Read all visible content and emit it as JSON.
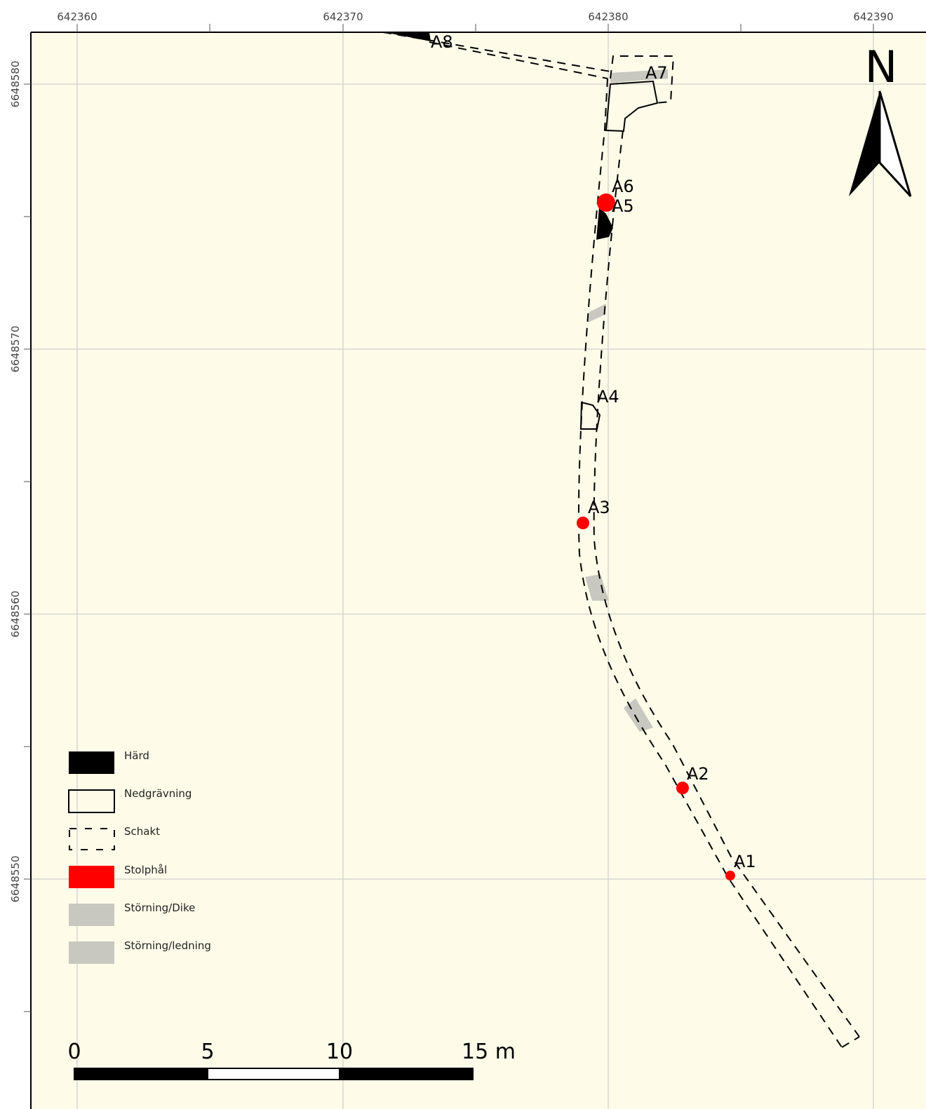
{
  "map": {
    "colors": {
      "background": "#fefce9",
      "grid": "#d6d6d0",
      "hard": "#000000",
      "stolphal": "#ff0000",
      "storning": "#c8c8c0"
    },
    "x_grid": [
      {
        "value": 642360,
        "label": "642360"
      },
      {
        "value": 642370,
        "label": "642370"
      },
      {
        "value": 642380,
        "label": "642380"
      },
      {
        "value": 642390,
        "label": "642390"
      }
    ],
    "y_grid": [
      {
        "value": 6648580,
        "label": "6648580"
      },
      {
        "value": 6648570,
        "label": "6648570"
      },
      {
        "value": 6648560,
        "label": "6648560"
      },
      {
        "value": 6648550,
        "label": "6648550"
      }
    ],
    "north_arrow": {
      "label": "N"
    },
    "features": [
      {
        "id": "A1",
        "label": "A1",
        "type": "Stolphål",
        "icon": "red-dot"
      },
      {
        "id": "A2",
        "label": "A2",
        "type": "Stolphål",
        "icon": "red-dot"
      },
      {
        "id": "A3",
        "label": "A3",
        "type": "Stolphål",
        "icon": "red-dot"
      },
      {
        "id": "A4",
        "label": "A4",
        "type": "Nedgrävning",
        "icon": "outline-polygon"
      },
      {
        "id": "A5",
        "label": "A5",
        "type": "Härd",
        "icon": "black-polygon"
      },
      {
        "id": "A6",
        "label": "A6",
        "type": "Stolphål",
        "icon": "red-dot"
      },
      {
        "id": "A7",
        "label": "A7",
        "type": "Nedgrävning",
        "icon": "outline-polygon"
      },
      {
        "id": "A8",
        "label": "A8",
        "type": "Härd",
        "icon": "black-polygon"
      }
    ],
    "legend": {
      "items": [
        {
          "label": "Härd",
          "symbol": "solid-black"
        },
        {
          "label": "Nedgrävning",
          "symbol": "outline"
        },
        {
          "label": "Schakt",
          "symbol": "dashed-outline"
        },
        {
          "label": "Stolphål",
          "symbol": "solid-red"
        },
        {
          "label": "Störning/Dike",
          "symbol": "solid-grey"
        },
        {
          "label": "Störning/ledning",
          "symbol": "solid-grey"
        }
      ]
    },
    "scale_bar": {
      "labels": [
        "0",
        "5",
        "10",
        "15 m"
      ]
    }
  }
}
